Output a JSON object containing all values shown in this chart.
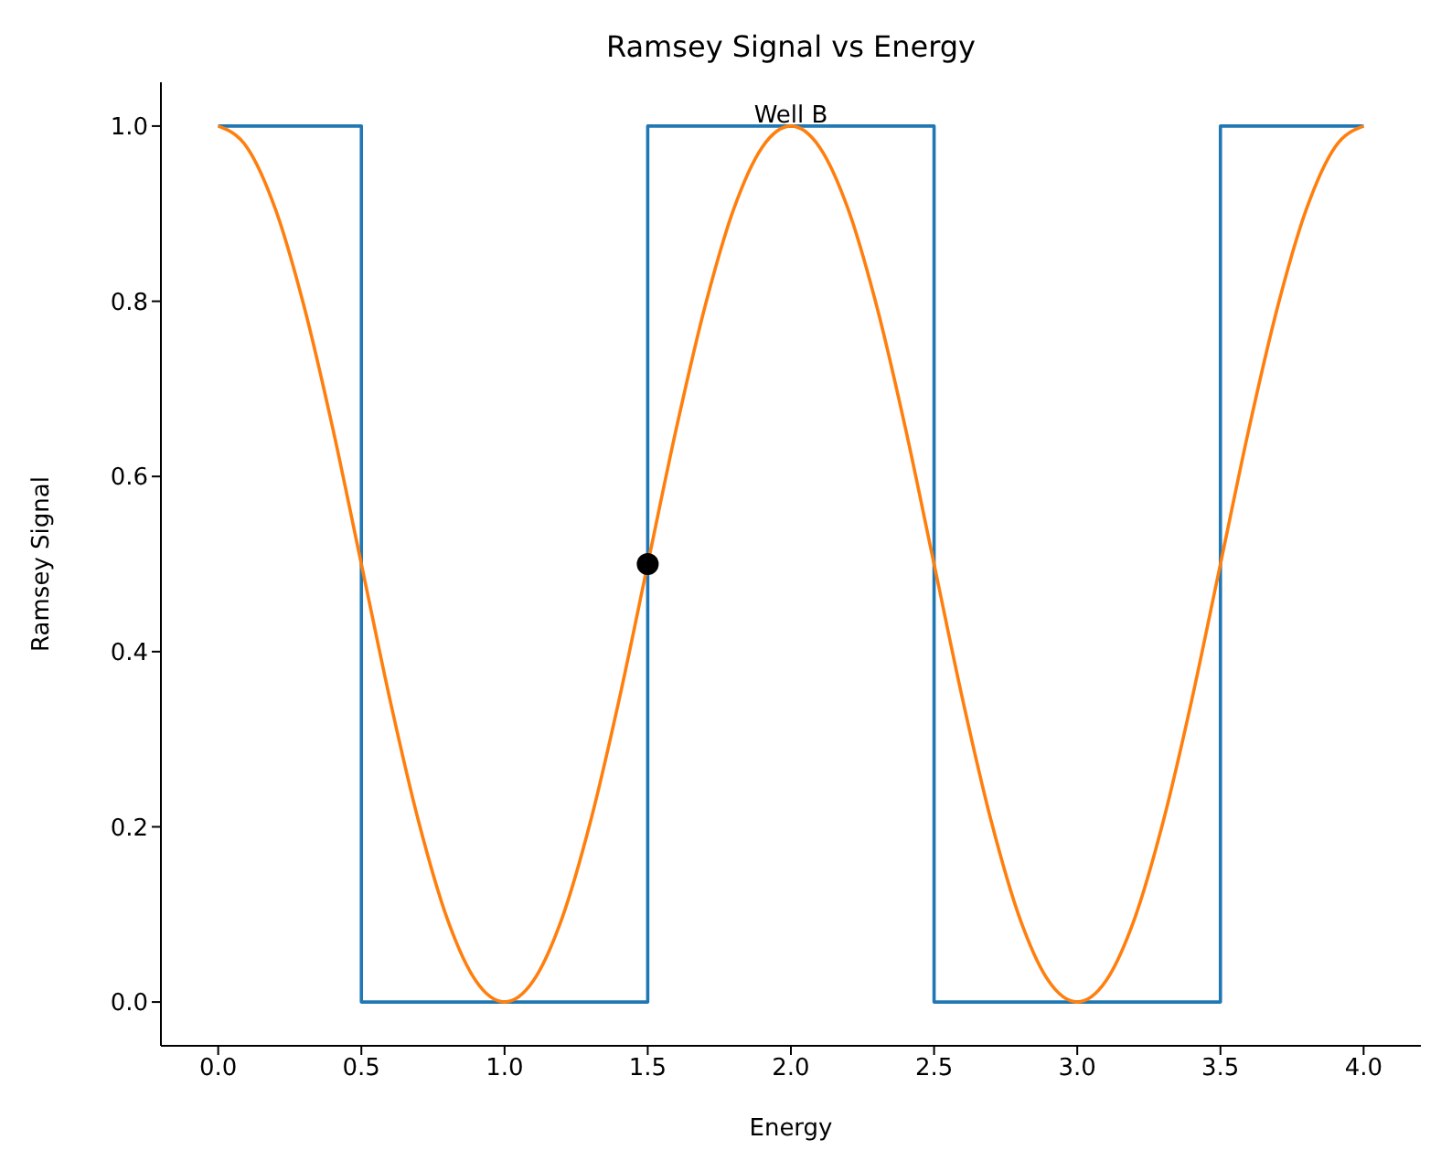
{
  "chart_data": {
    "type": "line",
    "title": "Ramsey Signal vs Energy",
    "xlabel": "Energy",
    "ylabel": "Ramsey Signal",
    "xlim": [
      -0.2,
      4.2
    ],
    "ylim": [
      -0.05,
      1.05
    ],
    "xticks": [
      {
        "value": 0,
        "label": "0.0"
      },
      {
        "value": 0.5,
        "label": "0.5"
      },
      {
        "value": 1,
        "label": "1.0"
      },
      {
        "value": 1.5,
        "label": "1.5"
      },
      {
        "value": 2,
        "label": "2.0"
      },
      {
        "value": 2.5,
        "label": "2.5"
      },
      {
        "value": 3,
        "label": "3.0"
      },
      {
        "value": 3.5,
        "label": "3.5"
      },
      {
        "value": 4,
        "label": "4.0"
      }
    ],
    "yticks": [
      {
        "value": 0,
        "label": "0.0"
      },
      {
        "value": 0.2,
        "label": "0.2"
      },
      {
        "value": 0.4,
        "label": "0.4"
      },
      {
        "value": 0.6,
        "label": "0.6"
      },
      {
        "value": 0.8,
        "label": "0.8"
      },
      {
        "value": 1,
        "label": "1.0"
      }
    ],
    "grid": false,
    "series": [
      {
        "type": "step",
        "color": "#1f77b4",
        "x": [
          0,
          0.5,
          1.5,
          2.5,
          3.5,
          4
        ],
        "values": [
          1,
          0,
          1,
          0,
          1,
          1
        ]
      },
      {
        "type": "line",
        "color": "#ff7f0e",
        "x": [
          0,
          0.1,
          0.2,
          0.3,
          0.4,
          0.5,
          0.6,
          0.7,
          0.8,
          0.9,
          1,
          1.1,
          1.2,
          1.3,
          1.4,
          1.5,
          1.6,
          1.7,
          1.8,
          1.9,
          2,
          2.1,
          2.2,
          2.3,
          2.4,
          2.5,
          2.6,
          2.7,
          2.8,
          2.9,
          3,
          3.1,
          3.2,
          3.3,
          3.4,
          3.5,
          3.6,
          3.7,
          3.8,
          3.9,
          4
        ],
        "values": [
          1,
          0.976,
          0.905,
          0.794,
          0.655,
          0.5,
          0.345,
          0.206,
          0.095,
          0.024,
          0,
          0.024,
          0.095,
          0.206,
          0.345,
          0.5,
          0.655,
          0.794,
          0.905,
          0.976,
          1,
          0.976,
          0.905,
          0.794,
          0.655,
          0.5,
          0.345,
          0.206,
          0.095,
          0.024,
          0,
          0.024,
          0.095,
          0.206,
          0.345,
          0.5,
          0.655,
          0.794,
          0.905,
          0.976,
          1
        ]
      },
      {
        "type": "scatter",
        "color": "#000000",
        "marker": "circle",
        "x": [
          1.5
        ],
        "values": [
          0.5
        ]
      }
    ],
    "annotations": [
      {
        "text": "Well B",
        "x": 2,
        "y": 1
      }
    ]
  }
}
